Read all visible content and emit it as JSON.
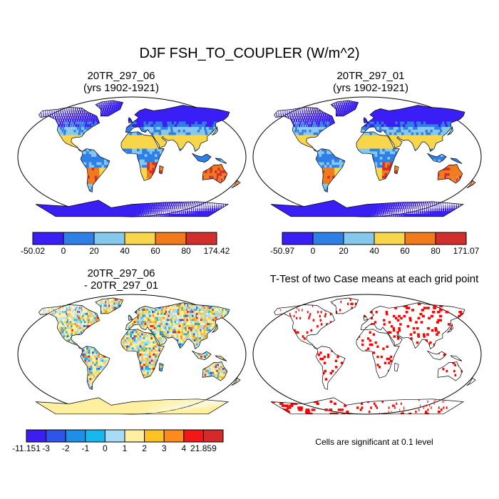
{
  "title": "DJF FSH_TO_COUPLER (W/m^2)",
  "panels": {
    "tl": {
      "title1": "20TR_297_06",
      "title2": "(yrs 1902-1921)"
    },
    "tr": {
      "title1": "20TR_297_01",
      "title2": "(yrs 1902-1921)"
    },
    "bl": {
      "title1": "20TR_297_06",
      "title2": "- 20TR_297_01"
    },
    "br": {
      "title1": "T-Test of two Case means at each grid point"
    }
  },
  "colorbars": {
    "cb1": {
      "colors": [
        "#3a1ff5",
        "#2f7fe6",
        "#86c8ec",
        "#f7d64b",
        "#f07a1c",
        "#d22e2e"
      ],
      "labels": [
        "-50.02",
        "0",
        "20",
        "40",
        "60",
        "80",
        "174.42"
      ]
    },
    "cb2": {
      "colors": [
        "#3a1ff5",
        "#2f7fe6",
        "#86c8ec",
        "#f7d64b",
        "#f07a1c",
        "#d22e2e"
      ],
      "labels": [
        "-50.97",
        "0",
        "20",
        "40",
        "60",
        "80",
        "171.07"
      ]
    },
    "cb3": {
      "colors": [
        "#3c1ff0",
        "#2d55e6",
        "#1e8fe8",
        "#18b8ee",
        "#a8dcf4",
        "#fff0a0",
        "#ffc226",
        "#ff8a1e",
        "#f21818",
        "#d42a2a"
      ],
      "labels": [
        "-11.151",
        "-3",
        "-2",
        "-1",
        "0",
        "1",
        "2",
        "3",
        "4",
        "21.859"
      ]
    }
  },
  "note": "Cells are significant at 0.1 level",
  "colors": {
    "ocean": "#ffffff",
    "coast": "#000000",
    "significant": "#ff0000"
  }
}
